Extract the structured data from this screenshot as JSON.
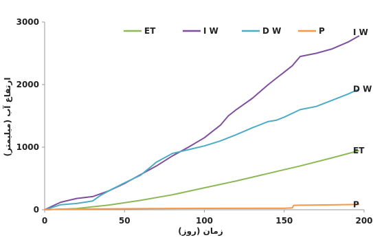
{
  "chart_data": {
    "type": "line",
    "title": "",
    "xlabel": "زمان (روز)",
    "ylabel": "ارتفاع آب (میلیمتر)",
    "xlim": [
      0,
      200
    ],
    "ylim": [
      0,
      3000
    ],
    "xticks": [
      "0",
      "50",
      "100",
      "150",
      "200"
    ],
    "yticks": [
      "0",
      "1000",
      "2000",
      "3000"
    ],
    "grid": false,
    "legend_position": "top",
    "series": [
      {
        "name": "ET",
        "color": "#8db858",
        "x": [
          0,
          20,
          40,
          60,
          80,
          100,
          120,
          140,
          160,
          180,
          197
        ],
        "y": [
          0,
          20,
          75,
          150,
          240,
          350,
          460,
          580,
          700,
          830,
          945
        ]
      },
      {
        "name": "I W",
        "color": "#7f4f9e",
        "x": [
          0,
          5,
          10,
          20,
          30,
          40,
          50,
          60,
          70,
          80,
          90,
          100,
          110,
          115,
          120,
          130,
          140,
          145,
          150,
          155,
          160,
          170,
          180,
          190,
          197
        ],
        "y": [
          0,
          60,
          120,
          180,
          210,
          300,
          420,
          560,
          700,
          860,
          1000,
          1150,
          1350,
          1500,
          1600,
          1780,
          2000,
          2100,
          2200,
          2300,
          2450,
          2500,
          2570,
          2680,
          2780
        ]
      },
      {
        "name": "D W",
        "color": "#4bacc6",
        "x": [
          0,
          5,
          10,
          20,
          30,
          35,
          40,
          50,
          60,
          70,
          80,
          90,
          100,
          110,
          120,
          130,
          140,
          145,
          150,
          160,
          170,
          175,
          180,
          190,
          197
        ],
        "y": [
          0,
          40,
          80,
          100,
          140,
          230,
          300,
          430,
          550,
          760,
          900,
          960,
          1020,
          1100,
          1200,
          1310,
          1410,
          1430,
          1480,
          1600,
          1650,
          1700,
          1750,
          1850,
          1930
        ]
      },
      {
        "name": "P",
        "color": "#f79646",
        "x": [
          0,
          10,
          70,
          100,
          150,
          155,
          156,
          160,
          180,
          197
        ],
        "y": [
          0,
          10,
          20,
          22,
          23,
          30,
          70,
          72,
          78,
          85
        ]
      }
    ],
    "end_labels": [
      "I W",
      "D W",
      "ET",
      "P"
    ]
  }
}
